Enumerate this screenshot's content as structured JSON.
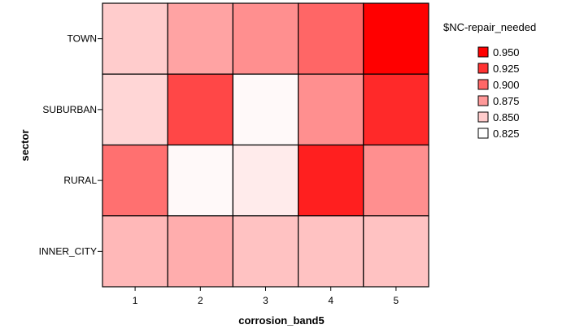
{
  "chart_data": {
    "type": "heatmap",
    "title": "",
    "xlabel": "corrosion_band5",
    "ylabel": "sector",
    "x_categories": [
      "1",
      "2",
      "3",
      "4",
      "5"
    ],
    "y_categories": [
      "TOWN",
      "SUBURBAN",
      "RURAL",
      "INNER_CITY"
    ],
    "values": [
      [
        0.85,
        0.87,
        0.88,
        0.9,
        0.95
      ],
      [
        0.845,
        0.915,
        0.828,
        0.88,
        0.93
      ],
      [
        0.895,
        0.828,
        0.835,
        0.935,
        0.88
      ],
      [
        0.86,
        0.865,
        0.855,
        0.855,
        0.855
      ]
    ],
    "grid": false,
    "legend": {
      "title": "$NC-repair_needed",
      "position": "right",
      "items": [
        {
          "label": "0.950",
          "color": "#ff0000"
        },
        {
          "label": "0.925",
          "color": "#ff3333"
        },
        {
          "label": "0.900",
          "color": "#ff6666"
        },
        {
          "label": "0.875",
          "color": "#ff9999"
        },
        {
          "label": "0.850",
          "color": "#ffcccc"
        },
        {
          "label": "0.825",
          "color": "#ffffff"
        }
      ]
    },
    "color_scale": {
      "min": 0.825,
      "max": 0.95,
      "low_color": "#ffffff",
      "high_color": "#ff0000"
    }
  }
}
